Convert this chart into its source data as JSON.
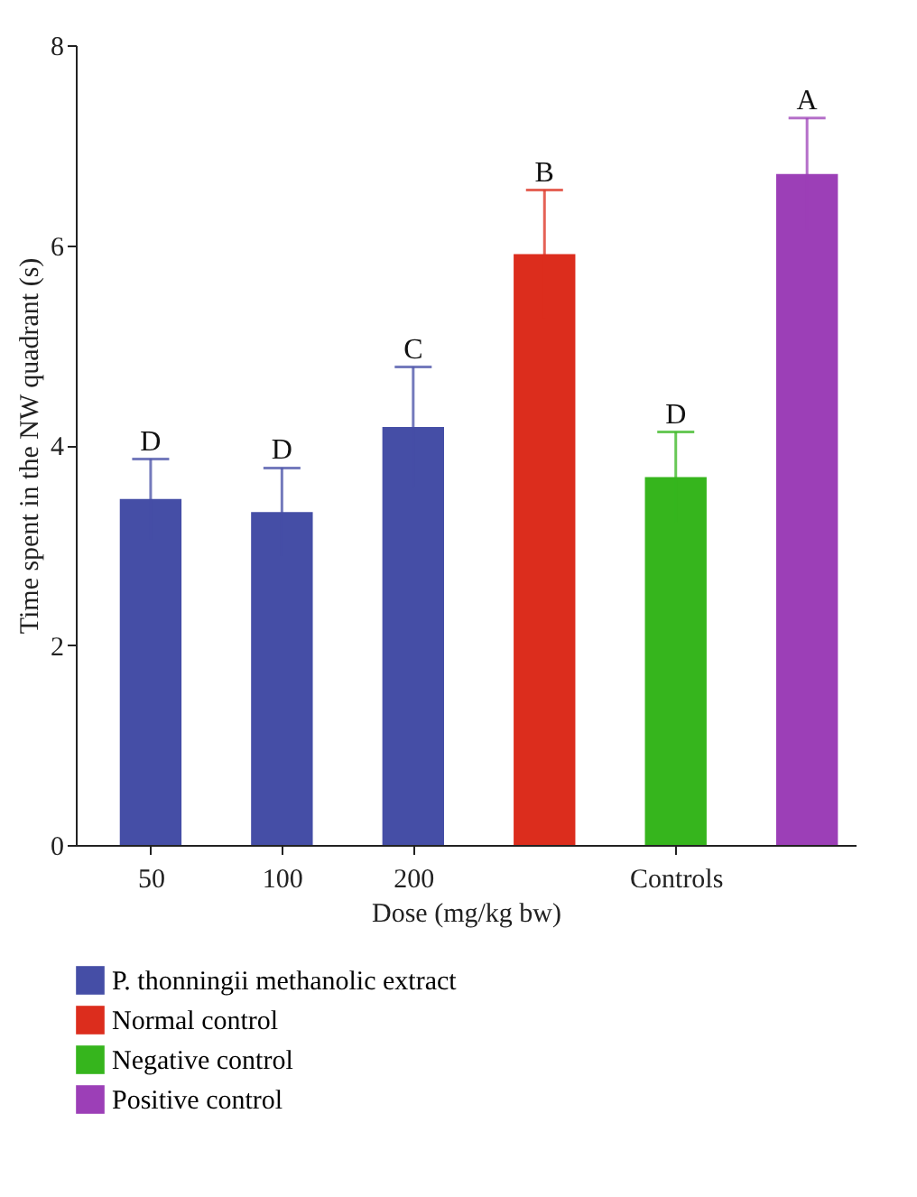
{
  "chart_data": {
    "type": "bar",
    "xlabel": "Dose (mg/kg bw)",
    "ylabel": "Time spent in the NW quadrant (s)",
    "categories": [
      "50",
      "100",
      "200",
      null,
      "Controls",
      null
    ],
    "series": [
      {
        "name": "P. thonningii methanolic extract",
        "color": "#454ea6",
        "values": [
          3.46,
          3.33,
          4.18,
          null,
          null,
          null
        ],
        "errors": [
          0.4,
          0.44,
          0.6,
          null,
          null,
          null
        ]
      },
      {
        "name": "Normal control",
        "color": "#dc2d1d",
        "values": [
          null,
          null,
          null,
          5.91,
          null,
          null
        ],
        "errors": [
          null,
          null,
          null,
          0.64,
          null,
          null
        ]
      },
      {
        "name": "Negative control",
        "color": "#36b51d",
        "values": [
          null,
          null,
          null,
          null,
          3.68,
          null
        ],
        "errors": [
          null,
          null,
          null,
          null,
          0.45,
          null
        ]
      },
      {
        "name": "Positive control",
        "color": "#9c3fb7",
        "values": [
          null,
          null,
          null,
          null,
          null,
          6.71
        ],
        "errors": [
          null,
          null,
          null,
          null,
          null,
          0.56
        ]
      }
    ],
    "ylim": [
      0,
      8
    ],
    "yticks": [
      0,
      2,
      4,
      6,
      8
    ],
    "grid": false,
    "legend": "bottom",
    "annotations": [
      {
        "text": "D",
        "x": "50",
        "y": 3.86
      },
      {
        "text": "D",
        "x": "100",
        "y": 3.77
      },
      {
        "text": "C",
        "x": "200",
        "y": 4.78
      },
      {
        "text": "B",
        "y": 6.55
      },
      {
        "text": "D",
        "x": "Controls",
        "y": 4.13
      },
      {
        "text": "A",
        "y": 7.27
      }
    ]
  }
}
